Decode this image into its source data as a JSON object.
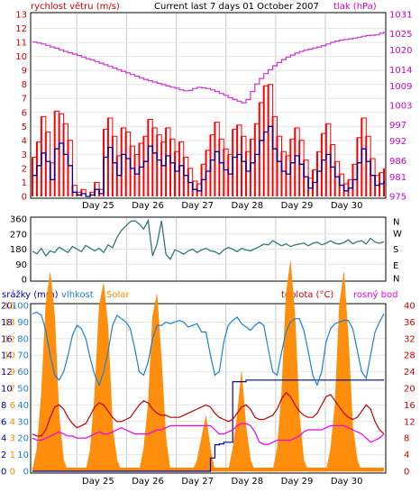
{
  "header": {
    "left_label": "rychlost větru (m/s)",
    "title": "Current last 7 days 01 October 2007",
    "right_label": "tlak (hPa)"
  },
  "days": [
    "Day 25",
    "Day 26",
    "Day 27",
    "Day 28",
    "Day 29",
    "Day 30"
  ],
  "colors": {
    "wind_avg": "#000099",
    "wind_gust": "#ff0000",
    "pressure": "#cc33cc",
    "direction": "#337777",
    "humidity": "#1f7fd0",
    "solar": "#ff8800",
    "temperature": "#bb0000",
    "dewpoint": "#ee00ee",
    "rain": "#000099",
    "left_axis_text": "#cc0000",
    "right_axis_text": "#cc00cc",
    "grid": "#c8c8c8"
  },
  "chart_data": [
    {
      "type": "line",
      "left_axis": {
        "label": "rychlost větru (m/s)",
        "ylim": [
          0,
          13
        ],
        "ticks": [
          "0",
          "1",
          "2",
          "3",
          "4",
          "5",
          "6",
          "7",
          "8",
          "9",
          "10",
          "11",
          "12",
          "13"
        ]
      },
      "right_axis": {
        "label": "tlak (hPa)",
        "ticks": [
          "975",
          "981",
          "986",
          "992",
          "997",
          "1003",
          "1009",
          "1014",
          "1020",
          "1025",
          "1031"
        ]
      },
      "x_ticks": [
        "Day 25",
        "Day 26",
        "Day 27",
        "Day 28",
        "Day 29",
        "Day 30"
      ],
      "series": [
        {
          "name": "rychlost větru",
          "values": [
            1.5,
            2.2,
            3.1,
            2.5,
            1.2,
            3.4,
            3.8,
            3.0,
            2.2,
            0.3,
            0.1,
            0.2,
            0.0,
            0.1,
            0.5,
            0.2,
            2.8,
            3.5,
            2.4,
            1.5,
            3.0,
            2.7,
            2.0,
            1.6,
            2.1,
            2.5,
            3.6,
            3.1,
            2.6,
            2.2,
            2.9,
            2.4,
            1.8,
            2.2,
            1.5,
            1.0,
            0.5,
            0.4,
            1.2,
            1.8,
            2.6,
            3.2,
            2.4,
            1.9,
            1.6,
            2.8,
            3.0,
            2.5,
            1.8,
            2.4,
            3.0,
            4.0,
            4.6,
            5.0,
            3.4,
            2.5,
            1.8,
            1.6,
            2.4,
            2.9,
            2.3,
            1.4,
            0.6,
            1.0,
            1.8,
            2.6,
            3.0,
            2.1,
            1.4,
            0.8,
            0.4,
            0.6,
            1.2,
            2.4,
            3.4,
            2.5,
            1.5,
            0.8,
            0.9,
            1.1
          ]
        },
        {
          "name": "náraz",
          "values": [
            2.8,
            3.9,
            5.7,
            4.6,
            2.4,
            6.1,
            5.9,
            5.2,
            4.0,
            0.8,
            0.3,
            0.5,
            0.0,
            0.3,
            1.0,
            0.5,
            4.8,
            5.6,
            4.3,
            2.9,
            4.9,
            4.6,
            3.6,
            3.0,
            3.8,
            4.3,
            5.5,
            4.9,
            4.4,
            3.9,
            4.9,
            4.1,
            3.2,
            3.9,
            2.8,
            2.0,
            1.1,
            0.9,
            2.3,
            3.3,
            4.4,
            5.3,
            4.1,
            3.4,
            3.0,
            4.8,
            5.1,
            4.3,
            3.2,
            4.1,
            5.2,
            6.7,
            7.9,
            8.0,
            5.7,
            4.3,
            3.2,
            2.9,
            4.1,
            4.9,
            4.0,
            2.6,
            1.3,
            1.9,
            3.2,
            4.5,
            5.2,
            3.7,
            2.5,
            1.6,
            0.9,
            1.2,
            2.3,
            4.2,
            5.6,
            4.3,
            2.7,
            1.5,
            1.7,
            2.0
          ]
        },
        {
          "name": "tlak",
          "values": [
            1022.5,
            1022.2,
            1021.9,
            1021.5,
            1021.0,
            1020.6,
            1020.1,
            1019.6,
            1019.2,
            1018.8,
            1018.4,
            1017.9,
            1017.4,
            1017.0,
            1016.5,
            1016.0,
            1015.5,
            1015.0,
            1014.5,
            1014.0,
            1013.5,
            1013.0,
            1012.5,
            1012.0,
            1011.5,
            1011.0,
            1010.6,
            1010.2,
            1009.8,
            1009.4,
            1009.0,
            1008.6,
            1008.3,
            1007.8,
            1007.5,
            1007.6,
            1008.2,
            1008.6,
            1008.4,
            1008.2,
            1007.8,
            1007.3,
            1006.7,
            1006.1,
            1005.4,
            1004.8,
            1004.3,
            1003.8,
            1004.8,
            1007.3,
            1009.6,
            1011.3,
            1012.8,
            1014.0,
            1015.2,
            1016.2,
            1017.1,
            1017.9,
            1018.5,
            1019.1,
            1019.6,
            1020.0,
            1020.3,
            1020.7,
            1021.0,
            1021.4,
            1021.9,
            1022.4,
            1022.8,
            1023.1,
            1023.3,
            1023.5,
            1023.7,
            1024.0,
            1024.3,
            1024.5,
            1024.6,
            1024.7,
            1025.2,
            1025.8
          ]
        }
      ]
    },
    {
      "type": "line",
      "left_axis": {
        "ylim": [
          0,
          360
        ],
        "ticks": [
          "0",
          "90",
          "180",
          "270",
          "360"
        ]
      },
      "right_axis": {
        "ticks": [
          "N",
          "E",
          "S",
          "W",
          "N"
        ]
      },
      "x_ticks": [],
      "series": [
        {
          "name": "směr větru",
          "values": [
            168,
            152,
            185,
            140,
            170,
            160,
            192,
            175,
            160,
            196,
            180,
            165,
            202,
            186,
            170,
            185,
            160,
            206,
            188,
            250,
            292,
            318,
            345,
            350,
            330,
            300,
            350,
            140,
            210,
            350,
            150,
            120,
            176,
            165,
            150,
            170,
            180,
            160,
            175,
            185,
            170,
            165,
            150,
            175,
            190,
            180,
            165,
            185,
            175,
            170,
            182,
            195,
            210,
            205,
            230,
            215,
            200,
            212,
            195,
            205,
            210,
            216,
            200,
            215,
            222,
            206,
            215,
            230,
            215,
            210,
            220,
            236,
            212,
            225,
            230,
            210,
            245,
            222,
            215,
            225
          ]
        }
      ]
    },
    {
      "type": "line",
      "left_axis": {
        "label": "srážky (mm)",
        "ylim": [
          0,
          100
        ],
        "ticks": [
          "0",
          "10",
          "20",
          "30",
          "40",
          "50",
          "60",
          "70",
          "80",
          "90",
          "100"
        ],
        "ticks_solar": [
          "0",
          "1",
          "3",
          "4",
          "6",
          "7",
          "9",
          "10",
          "12",
          "13",
          "15"
        ],
        "ticks_rain": [
          "0",
          "2",
          "4",
          "6",
          "8",
          "10",
          "12",
          "14",
          "16",
          "18",
          "20"
        ],
        "label_humidity": "vlhkost",
        "label_solar": "Solar"
      },
      "right_axis": {
        "label": "teplota (°C)",
        "label_dewpoint": "rosný bod",
        "ticks": [
          "0",
          "2",
          "4",
          "6",
          "8",
          "10",
          "12",
          "14",
          "16",
          "18",
          "20",
          "22",
          "24",
          "26",
          "28",
          "30",
          "32",
          "34",
          "36",
          "38",
          "40"
        ]
      },
      "x_ticks": [
        "Day 25",
        "Day 26",
        "Day 27",
        "Day 28",
        "Day 29",
        "Day 30"
      ],
      "series": [
        {
          "name": "vlhkost",
          "values": [
            95,
            96,
            94,
            85,
            70,
            58,
            55,
            60,
            70,
            82,
            88,
            86,
            80,
            68,
            58,
            52,
            60,
            72,
            88,
            94,
            92,
            90,
            86,
            74,
            60,
            58,
            66,
            80,
            88,
            88,
            90,
            89,
            90,
            91,
            90,
            87,
            88,
            89,
            84,
            84,
            70,
            58,
            60,
            78,
            88,
            91,
            93,
            89,
            87,
            85,
            88,
            90,
            88,
            74,
            60,
            58,
            72,
            84,
            90,
            92,
            92,
            85,
            72,
            58,
            52,
            60,
            78,
            86,
            89,
            90,
            91,
            91,
            86,
            73,
            60,
            56,
            70,
            84,
            90,
            95
          ]
        },
        {
          "name": "Solar",
          "values": [
            0,
            2,
            7,
            15,
            18,
            14,
            5,
            1,
            0,
            0,
            0,
            0,
            0,
            2,
            7,
            15,
            17,
            13,
            4,
            1,
            0,
            0,
            0,
            0,
            0,
            2,
            6,
            14,
            16,
            10,
            3,
            0,
            0,
            0,
            0,
            0,
            0,
            1,
            3,
            5,
            2,
            0,
            0,
            0,
            0,
            2,
            5,
            9,
            4,
            1,
            0,
            0,
            0,
            0,
            0,
            2,
            7,
            16,
            19,
            14,
            5,
            1,
            0,
            0,
            0,
            0,
            0,
            2,
            6,
            15,
            18,
            12,
            4,
            1,
            0,
            0,
            0,
            0,
            0,
            0
          ]
        },
        {
          "name": "teplota",
          "values": [
            9,
            8.5,
            8.5,
            10,
            13,
            15.5,
            16,
            15,
            13,
            11.5,
            10.5,
            11,
            11.5,
            13.5,
            15.5,
            16.5,
            16,
            14.5,
            13,
            12,
            12,
            12.5,
            13,
            14.5,
            16,
            17,
            16.5,
            15,
            14,
            13.5,
            13.5,
            13,
            13,
            13,
            13.5,
            14,
            14.5,
            15,
            15.5,
            16,
            15.5,
            14,
            13,
            12.5,
            12,
            12.5,
            14,
            15.5,
            16,
            15,
            13,
            12.5,
            12.5,
            13,
            13.5,
            15,
            17.5,
            19,
            18,
            16,
            14.5,
            13.5,
            13,
            13,
            14,
            16,
            18,
            18.5,
            17,
            15.5,
            14,
            13,
            12.5,
            13,
            14.5,
            16,
            15,
            12,
            10,
            9
          ]
        },
        {
          "name": "rosný bod",
          "values": [
            8,
            7.5,
            7.5,
            8,
            8.5,
            9,
            9.5,
            9,
            8.5,
            8.5,
            8,
            8,
            8,
            8.5,
            9,
            9.5,
            9,
            9,
            9.5,
            10,
            10.5,
            10,
            9.5,
            9,
            9,
            9,
            9,
            9.5,
            10,
            10,
            10.5,
            11,
            11,
            11,
            11,
            11,
            11,
            11,
            11,
            11,
            11,
            10,
            9,
            9,
            9.5,
            10,
            11,
            11.5,
            11.5,
            11,
            9.5,
            7,
            6.5,
            6.5,
            7,
            7.5,
            7.5,
            7.5,
            7.5,
            8,
            8.5,
            9.5,
            10,
            10,
            10,
            10,
            10.5,
            11,
            11,
            11,
            11,
            10.5,
            10,
            9.5,
            9,
            8,
            7,
            7.5,
            8,
            9
          ]
        },
        {
          "name": "srážky",
          "values": [
            0,
            0,
            0,
            0,
            0,
            0,
            0,
            0,
            0,
            0,
            0,
            0,
            0,
            0,
            0,
            0,
            0,
            0,
            0,
            0,
            0,
            0,
            0,
            0,
            0,
            0,
            0,
            0,
            0,
            0,
            0,
            0,
            0,
            0,
            0,
            0,
            0,
            0,
            0,
            0,
            1.6,
            3.2,
            3.3,
            3.5,
            3.5,
            10.8,
            10.8,
            10.8,
            11.0,
            11.0,
            11.0,
            11.0,
            11.0,
            11.0,
            11.0,
            11.0,
            11.0,
            11.0,
            11.0,
            11.0,
            11.0,
            11.0,
            11.0,
            11.0,
            11.0,
            11.0,
            11.0,
            11.0,
            11.0,
            11.0,
            11.0,
            11.0,
            11.0,
            11.0,
            11.0,
            11.0,
            11.0,
            11.0,
            11.0,
            11.0
          ]
        }
      ]
    }
  ]
}
